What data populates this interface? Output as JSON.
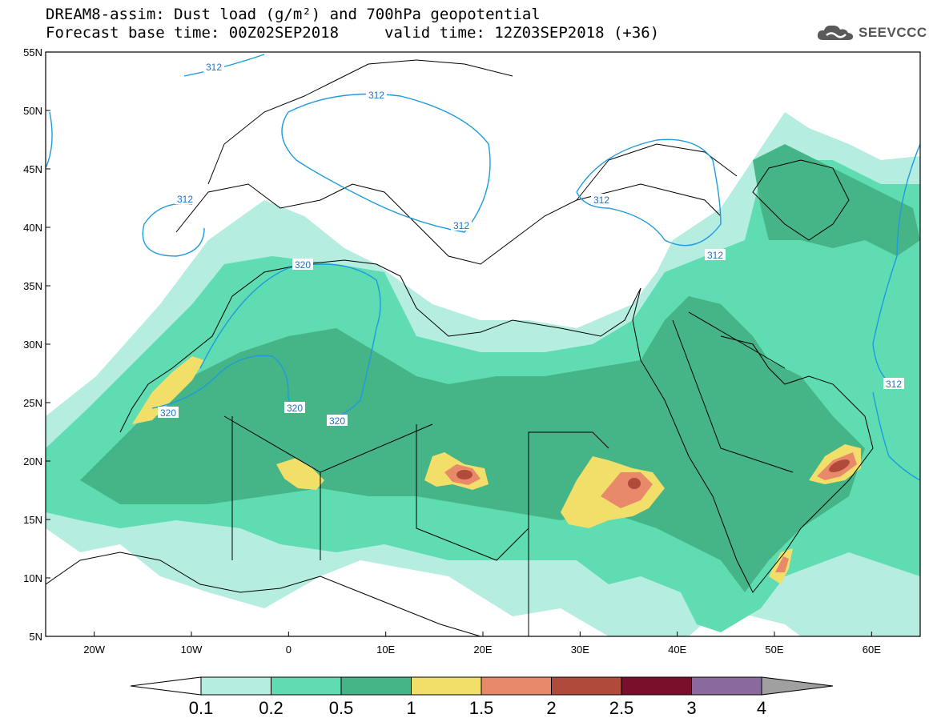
{
  "header": {
    "title_line1": "DREAM8-assim: Dust load (g/m²) and 700hPa geopotential",
    "title_line2": "Forecast base time: 00Z02SEP2018",
    "valid_time": "valid time: 12Z03SEP2018 (+36)",
    "logo_text": "SEEVCCC"
  },
  "map": {
    "lat_labels": [
      "55N",
      "50N",
      "45N",
      "40N",
      "35N",
      "30N",
      "25N",
      "20N",
      "15N",
      "10N",
      "5N"
    ],
    "lon_labels": [
      "20W",
      "10W",
      "0",
      "10E",
      "20E",
      "30E",
      "40E",
      "50E",
      "60E"
    ],
    "contour_labels": {
      "c312_a": "312",
      "c312_b": "312",
      "c312_c": "312",
      "c312_d": "312",
      "c312_e": "312",
      "c312_f": "312",
      "c312_g": "312",
      "c320_a": "320",
      "c320_b": "320",
      "c320_c": "320",
      "c320_d": "320"
    }
  },
  "colorbar": {
    "labels": [
      "0.1",
      "0.2",
      "0.5",
      "1",
      "1.5",
      "2",
      "2.5",
      "3",
      "4"
    ],
    "colors": [
      "#b5ede1",
      "#5fdcb2",
      "#45b487",
      "#f2df6a",
      "#e8896a",
      "#b04a3b",
      "#7a0f2c",
      "#8a6a9e",
      "#a0a0a0"
    ]
  }
}
